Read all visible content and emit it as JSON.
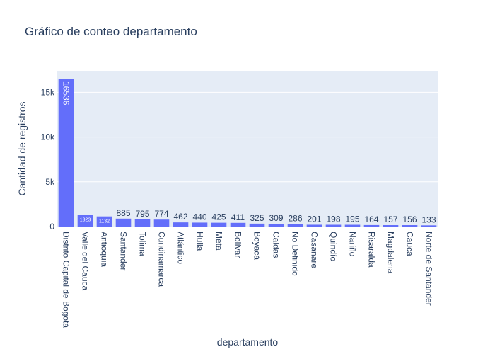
{
  "chart_data": {
    "type": "bar",
    "title": "Gráfico de conteo departamento",
    "xlabel": "departamento",
    "ylabel": "Cantidad de registros",
    "categories": [
      "Distrito Capital de Bogotá",
      "Valle del Cauca",
      "Antioquia",
      "Santander",
      "Tolima",
      "Cundinamarca",
      "Atlántico",
      "Huila",
      "Meta",
      "Bolívar",
      "Boyacá",
      "Caldas",
      "No Definido",
      "Casanare",
      "Quindío",
      "Nariño",
      "Risaralda",
      "Magdalena",
      "Cauca",
      "Norte de Santander"
    ],
    "values": [
      16536,
      1323,
      1132,
      885,
      795,
      774,
      462,
      440,
      425,
      411,
      325,
      309,
      286,
      201,
      198,
      195,
      164,
      157,
      156,
      133
    ],
    "ylim": [
      0,
      17407
    ],
    "yticks": [
      0,
      5000,
      10000,
      15000
    ],
    "ytick_labels": [
      "0",
      "5k",
      "10k",
      "15k"
    ],
    "grid": true,
    "bar_color": "#636efa",
    "plot_bg": "#e5ecf6"
  }
}
